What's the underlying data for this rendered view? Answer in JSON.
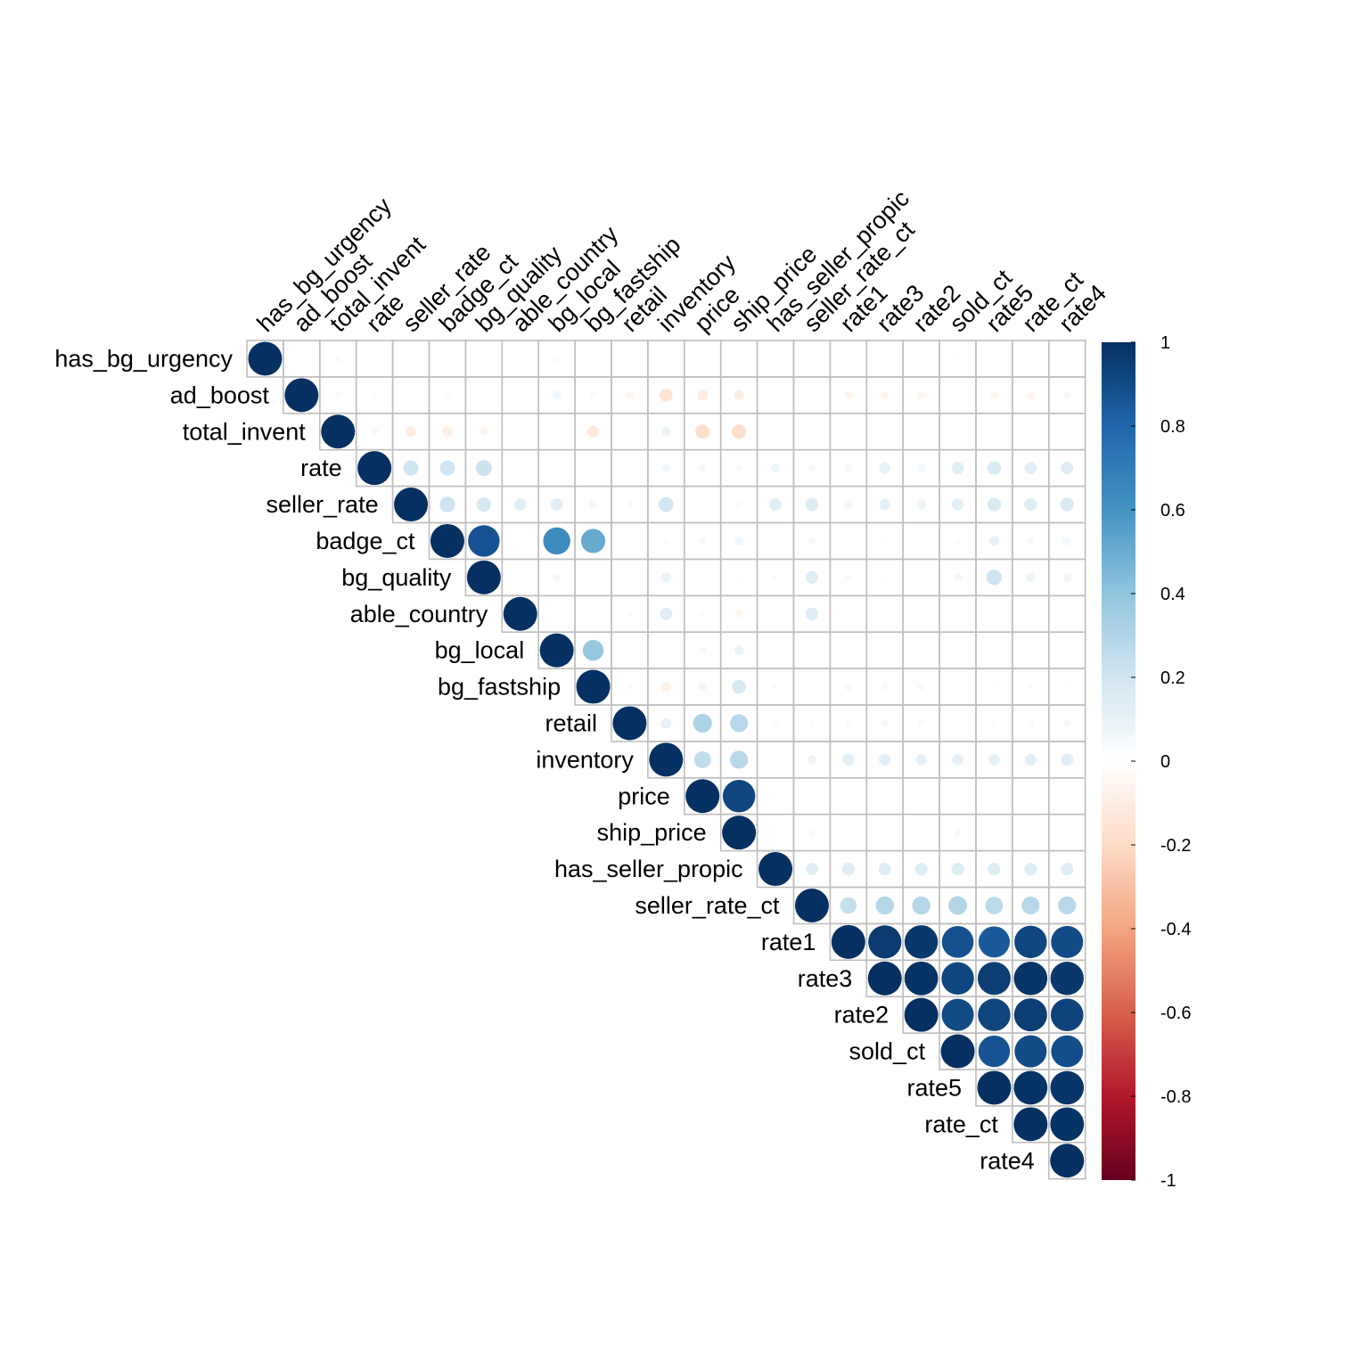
{
  "chart_data": {
    "type": "heatmap",
    "style": "corrplot-circle-upper",
    "variables": [
      "has_bg_urgency",
      "ad_boost",
      "total_invent",
      "rate",
      "seller_rate",
      "badge_ct",
      "bg_quality",
      "able_country",
      "bg_local",
      "bg_fastship",
      "retail",
      "inventory",
      "price",
      "ship_price",
      "has_seller_propic",
      "seller_rate_ct",
      "rate1",
      "rate3",
      "rate2",
      "sold_ct",
      "rate5",
      "rate_ct",
      "rate4"
    ],
    "matrix": [
      [
        1.0,
        0.01,
        0.04,
        0.01,
        0.0,
        0.01,
        0.01,
        0.0,
        -0.04,
        0.0,
        0.01,
        0.0,
        0.01,
        0.0,
        0.0,
        0.0,
        0.0,
        0.0,
        0.0,
        0.02,
        0.0,
        0.0,
        0.0
      ],
      [
        null,
        1.0,
        0.04,
        -0.03,
        0.01,
        0.03,
        0.0,
        0.01,
        0.07,
        0.04,
        -0.05,
        -0.15,
        -0.1,
        -0.09,
        0.0,
        -0.01,
        -0.06,
        -0.06,
        -0.06,
        -0.01,
        -0.05,
        -0.05,
        -0.04
      ],
      [
        null,
        null,
        1.0,
        -0.05,
        -0.1,
        -0.09,
        -0.06,
        0.01,
        0.0,
        -0.12,
        0.0,
        0.08,
        -0.18,
        -0.18,
        -0.01,
        -0.01,
        -0.01,
        -0.01,
        -0.01,
        0.0,
        0.0,
        0.0,
        -0.01
      ],
      [
        null,
        null,
        null,
        1.0,
        0.2,
        0.2,
        0.22,
        0.01,
        0.01,
        0.01,
        0.01,
        0.06,
        0.05,
        0.05,
        0.07,
        0.05,
        0.05,
        0.11,
        0.06,
        0.13,
        0.16,
        0.13,
        0.14
      ],
      [
        null,
        null,
        null,
        null,
        1.0,
        0.21,
        0.18,
        0.13,
        0.13,
        0.06,
        0.05,
        0.19,
        0.02,
        0.04,
        0.13,
        0.15,
        0.07,
        0.11,
        0.08,
        0.12,
        0.16,
        0.14,
        0.16
      ],
      [
        null,
        null,
        null,
        null,
        null,
        1.0,
        0.87,
        0.01,
        0.64,
        0.51,
        0.01,
        0.03,
        0.05,
        0.07,
        0.02,
        0.04,
        0.0,
        0.02,
        0.0,
        0.03,
        0.09,
        0.05,
        0.06
      ],
      [
        null,
        null,
        null,
        null,
        null,
        null,
        1.0,
        0.01,
        0.05,
        0.0,
        0.0,
        0.09,
        0.0,
        0.02,
        0.03,
        0.14,
        -0.04,
        0.02,
        0.01,
        0.06,
        0.21,
        0.07,
        0.06
      ],
      [
        null,
        null,
        null,
        null,
        null,
        null,
        null,
        1.0,
        -0.01,
        0.0,
        0.03,
        0.13,
        -0.03,
        -0.05,
        0.0,
        0.14,
        0.0,
        0.0,
        0.0,
        0.01,
        0.0,
        0.0,
        0.0
      ],
      [
        null,
        null,
        null,
        null,
        null,
        null,
        null,
        null,
        1.0,
        0.38,
        0.01,
        0.0,
        0.05,
        0.08,
        -0.02,
        0.0,
        0.0,
        0.0,
        0.0,
        0.0,
        0.0,
        0.0,
        0.0
      ],
      [
        null,
        null,
        null,
        null,
        null,
        null,
        null,
        null,
        null,
        1.0,
        0.03,
        -0.08,
        0.06,
        0.17,
        0.03,
        0.01,
        0.05,
        0.04,
        0.04,
        0.0,
        0.02,
        0.03,
        0.02
      ],
      [
        null,
        null,
        null,
        null,
        null,
        null,
        null,
        null,
        null,
        null,
        1.0,
        0.1,
        0.31,
        0.28,
        0.03,
        0.02,
        0.04,
        0.04,
        0.04,
        0.0,
        0.03,
        0.04,
        0.05
      ],
      [
        null,
        null,
        null,
        null,
        null,
        null,
        null,
        null,
        null,
        null,
        null,
        1.0,
        0.25,
        0.28,
        0.02,
        0.07,
        0.12,
        0.12,
        0.11,
        0.11,
        0.11,
        0.12,
        0.13
      ],
      [
        null,
        null,
        null,
        null,
        null,
        null,
        null,
        null,
        null,
        null,
        null,
        null,
        1.0,
        0.92,
        0.0,
        0.01,
        0.0,
        0.01,
        0.0,
        -0.01,
        0.0,
        0.0,
        0.0
      ],
      [
        null,
        null,
        null,
        null,
        null,
        null,
        null,
        null,
        null,
        null,
        null,
        null,
        null,
        1.0,
        -0.02,
        -0.04,
        0.0,
        -0.01,
        -0.01,
        -0.05,
        0.0,
        0.0,
        0.0
      ],
      [
        null,
        null,
        null,
        null,
        null,
        null,
        null,
        null,
        null,
        null,
        null,
        null,
        null,
        null,
        1.0,
        0.13,
        0.14,
        0.14,
        0.14,
        0.14,
        0.14,
        0.14,
        0.14
      ],
      [
        null,
        null,
        null,
        null,
        null,
        null,
        null,
        null,
        null,
        null,
        null,
        null,
        null,
        null,
        null,
        1.0,
        0.24,
        0.29,
        0.29,
        0.3,
        0.27,
        0.28,
        0.28
      ],
      [
        null,
        null,
        null,
        null,
        null,
        null,
        null,
        null,
        null,
        null,
        null,
        null,
        null,
        null,
        null,
        null,
        1.0,
        0.96,
        0.97,
        0.88,
        0.85,
        0.92,
        0.9
      ],
      [
        null,
        null,
        null,
        null,
        null,
        null,
        null,
        null,
        null,
        null,
        null,
        null,
        null,
        null,
        null,
        null,
        null,
        1.0,
        0.99,
        0.92,
        0.95,
        0.98,
        0.97
      ],
      [
        null,
        null,
        null,
        null,
        null,
        null,
        null,
        null,
        null,
        null,
        null,
        null,
        null,
        null,
        null,
        null,
        null,
        null,
        1.0,
        0.9,
        0.92,
        0.95,
        0.93
      ],
      [
        null,
        null,
        null,
        null,
        null,
        null,
        null,
        null,
        null,
        null,
        null,
        null,
        null,
        null,
        null,
        null,
        null,
        null,
        null,
        1.0,
        0.87,
        0.9,
        0.89
      ],
      [
        null,
        null,
        null,
        null,
        null,
        null,
        null,
        null,
        null,
        null,
        null,
        null,
        null,
        null,
        null,
        null,
        null,
        null,
        null,
        null,
        1.0,
        0.99,
        0.98
      ],
      [
        null,
        null,
        null,
        null,
        null,
        null,
        null,
        null,
        null,
        null,
        null,
        null,
        null,
        null,
        null,
        null,
        null,
        null,
        null,
        null,
        null,
        1.0,
        0.99
      ],
      [
        null,
        null,
        null,
        null,
        null,
        null,
        null,
        null,
        null,
        null,
        null,
        null,
        null,
        null,
        null,
        null,
        null,
        null,
        null,
        null,
        null,
        null,
        1.0
      ]
    ],
    "colorbar": {
      "ticks": [
        "1",
        "0.8",
        "0.6",
        "0.4",
        "0.2",
        "0",
        "-0.2",
        "-0.4",
        "-0.6",
        "-0.8",
        "-1"
      ],
      "range": [
        -1,
        1
      ],
      "palette": [
        "#67001F",
        "#B2182B",
        "#D6604D",
        "#F4A582",
        "#FDDBC7",
        "#FFFFFF",
        "#D1E5F0",
        "#92C5DE",
        "#4393C3",
        "#2166AC",
        "#053061"
      ]
    },
    "grid": true,
    "legend_position": "right"
  }
}
